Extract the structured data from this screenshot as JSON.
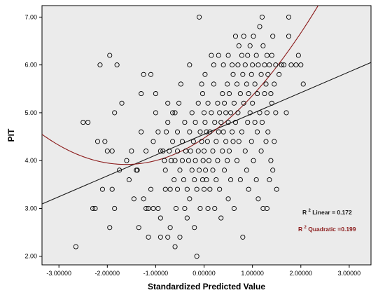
{
  "chart_data": {
    "type": "scatter",
    "xlabel": "Standardized Predicted Value",
    "ylabel": "PIT",
    "xlim": [
      -3.35,
      3.45
    ],
    "ylim": [
      1.82,
      7.24
    ],
    "x_ticks": [
      -3,
      -2,
      -1,
      0,
      1,
      2,
      3
    ],
    "x_tick_labels": [
      "-3.00000",
      "-2.00000",
      "-1.00000",
      "0.00000",
      "1.00000",
      "2.00000",
      "3.00000"
    ],
    "y_ticks": [
      2,
      3,
      4,
      5,
      6,
      7
    ],
    "y_tick_labels": [
      "2.00",
      "3.00",
      "4.00",
      "5.00",
      "6.00",
      "7.00"
    ],
    "grid": false,
    "plot_background": "#ebebeb",
    "marker_color": "#000000",
    "linear_fit": {
      "label_prefix": "R",
      "label_sup": "2",
      "label_suffix": " Linear = 0.172",
      "color": "#1a1a1a",
      "intercept": 4.55,
      "slope": 0.435
    },
    "quadratic_fit": {
      "label_prefix": "R",
      "label_sup": "2",
      "label_suffix": " Quadratic =0.199",
      "color": "#8b1a1a",
      "coefficients": [
        4.47,
        0.68,
        0.21
      ]
    },
    "points": [
      [
        -2.65,
        2.2
      ],
      [
        -2.5,
        4.8
      ],
      [
        -2.4,
        4.8
      ],
      [
        -2.3,
        3.0
      ],
      [
        -2.25,
        3.0
      ],
      [
        -2.2,
        4.4
      ],
      [
        -2.15,
        6.0
      ],
      [
        -2.1,
        3.4
      ],
      [
        -2.05,
        4.4
      ],
      [
        -2.0,
        4.2
      ],
      [
        -1.95,
        2.6
      ],
      [
        -1.95,
        6.2
      ],
      [
        -1.9,
        4.2
      ],
      [
        -1.9,
        3.4
      ],
      [
        -1.85,
        3.0
      ],
      [
        -1.85,
        5.0
      ],
      [
        -1.8,
        6.0
      ],
      [
        -1.75,
        3.8
      ],
      [
        -1.7,
        5.2
      ],
      [
        -1.6,
        4.0
      ],
      [
        -1.55,
        3.6
      ],
      [
        -1.5,
        4.2
      ],
      [
        -1.45,
        3.2
      ],
      [
        -1.4,
        3.8
      ],
      [
        -1.38,
        3.8
      ],
      [
        -1.35,
        2.6
      ],
      [
        -1.3,
        5.4
      ],
      [
        -1.3,
        4.6
      ],
      [
        -1.25,
        5.8
      ],
      [
        -1.25,
        3.2
      ],
      [
        -1.2,
        4.2
      ],
      [
        -1.2,
        3.0
      ],
      [
        -1.15,
        3.0
      ],
      [
        -1.15,
        2.4
      ],
      [
        -1.1,
        5.8
      ],
      [
        -1.1,
        3.4
      ],
      [
        -1.05,
        3.0
      ],
      [
        -1.05,
        4.4
      ],
      [
        -1.0,
        5.4
      ],
      [
        -1.0,
        5.0
      ],
      [
        -0.95,
        4.6
      ],
      [
        -0.95,
        3.0
      ],
      [
        -0.9,
        2.8
      ],
      [
        -0.9,
        4.2
      ],
      [
        -0.9,
        2.4
      ],
      [
        -0.85,
        4.2
      ],
      [
        -0.82,
        4.0
      ],
      [
        -0.8,
        3.8
      ],
      [
        -0.8,
        3.4
      ],
      [
        -0.78,
        4.6
      ],
      [
        -0.75,
        5.2
      ],
      [
        -0.75,
        4.8
      ],
      [
        -0.75,
        2.4
      ],
      [
        -0.72,
        4.2
      ],
      [
        -0.7,
        3.4
      ],
      [
        -0.7,
        2.6
      ],
      [
        -0.68,
        4.0
      ],
      [
        -0.65,
        5.0
      ],
      [
        -0.65,
        4.4
      ],
      [
        -0.62,
        3.6
      ],
      [
        -0.6,
        5.0
      ],
      [
        -0.6,
        4.0
      ],
      [
        -0.6,
        2.2
      ],
      [
        -0.58,
        3.0
      ],
      [
        -0.55,
        4.6
      ],
      [
        -0.55,
        4.2
      ],
      [
        -0.55,
        3.4
      ],
      [
        -0.52,
        5.2
      ],
      [
        -0.5,
        3.8
      ],
      [
        -0.5,
        2.4
      ],
      [
        -0.48,
        5.6
      ],
      [
        -0.45,
        4.4
      ],
      [
        -0.45,
        4.0
      ],
      [
        -0.42,
        3.6
      ],
      [
        -0.4,
        3.0
      ],
      [
        -0.4,
        4.8
      ],
      [
        -0.38,
        4.2
      ],
      [
        -0.35,
        3.4
      ],
      [
        -0.35,
        2.8
      ],
      [
        -0.32,
        4.0
      ],
      [
        -0.3,
        4.6
      ],
      [
        -0.3,
        3.2
      ],
      [
        -0.3,
        6.0
      ],
      [
        -0.28,
        4.2
      ],
      [
        -0.25,
        3.8
      ],
      [
        -0.25,
        5.0
      ],
      [
        -0.22,
        4.4
      ],
      [
        -0.2,
        3.6
      ],
      [
        -0.2,
        2.6
      ],
      [
        -0.18,
        4.8
      ],
      [
        -0.18,
        4.0
      ],
      [
        -0.15,
        3.4
      ],
      [
        -0.15,
        2.0
      ],
      [
        -0.12,
        5.2
      ],
      [
        -0.12,
        4.2
      ],
      [
        -0.1,
        3.8
      ],
      [
        -0.1,
        7.0
      ],
      [
        -0.08,
        4.6
      ],
      [
        -0.08,
        3.0
      ],
      [
        -0.05,
        5.6
      ],
      [
        -0.05,
        4.4
      ],
      [
        -0.03,
        5.4
      ],
      [
        -0.03,
        3.6
      ],
      [
        -0.02,
        4.0
      ],
      [
        0.0,
        5.0
      ],
      [
        0.0,
        4.2
      ],
      [
        0.0,
        3.4
      ],
      [
        0.02,
        5.8
      ],
      [
        0.02,
        4.8
      ],
      [
        0.03,
        3.8
      ],
      [
        0.05,
        4.6
      ],
      [
        0.05,
        3.6
      ],
      [
        0.07,
        4.4
      ],
      [
        0.08,
        5.2
      ],
      [
        0.08,
        3.0
      ],
      [
        0.1,
        4.0
      ],
      [
        0.12,
        4.6
      ],
      [
        0.12,
        3.4
      ],
      [
        0.15,
        6.2
      ],
      [
        0.15,
        5.0
      ],
      [
        0.18,
        4.2
      ],
      [
        0.18,
        3.8
      ],
      [
        0.2,
        6.0
      ],
      [
        0.2,
        5.6
      ],
      [
        0.22,
        4.8
      ],
      [
        0.22,
        3.0
      ],
      [
        0.25,
        4.4
      ],
      [
        0.25,
        3.6
      ],
      [
        0.28,
        5.2
      ],
      [
        0.28,
        4.0
      ],
      [
        0.3,
        6.2
      ],
      [
        0.3,
        4.6
      ],
      [
        0.32,
        5.0
      ],
      [
        0.32,
        3.4
      ],
      [
        0.35,
        4.8
      ],
      [
        0.35,
        2.8
      ],
      [
        0.38,
        5.4
      ],
      [
        0.38,
        4.2
      ],
      [
        0.4,
        6.0
      ],
      [
        0.4,
        4.6
      ],
      [
        0.42,
        5.2
      ],
      [
        0.42,
        3.8
      ],
      [
        0.45,
        5.0
      ],
      [
        0.45,
        4.4
      ],
      [
        0.48,
        5.6
      ],
      [
        0.48,
        4.0
      ],
      [
        0.5,
        6.2
      ],
      [
        0.5,
        4.8
      ],
      [
        0.5,
        3.2
      ],
      [
        0.52,
        5.4
      ],
      [
        0.52,
        4.2
      ],
      [
        0.55,
        5.0
      ],
      [
        0.55,
        3.6
      ],
      [
        0.58,
        6.0
      ],
      [
        0.58,
        4.6
      ],
      [
        0.6,
        5.8
      ],
      [
        0.6,
        4.4
      ],
      [
        0.62,
        5.2
      ],
      [
        0.62,
        3.0
      ],
      [
        0.65,
        6.6
      ],
      [
        0.65,
        4.8
      ],
      [
        0.68,
        5.6
      ],
      [
        0.68,
        4.0
      ],
      [
        0.7,
        6.0
      ],
      [
        0.7,
        5.0
      ],
      [
        0.72,
        6.4
      ],
      [
        0.72,
        4.4
      ],
      [
        0.75,
        5.4
      ],
      [
        0.75,
        3.6
      ],
      [
        0.78,
        6.2
      ],
      [
        0.78,
        4.6
      ],
      [
        0.8,
        5.8
      ],
      [
        0.8,
        2.4
      ],
      [
        0.82,
        6.6
      ],
      [
        0.82,
        5.2
      ],
      [
        0.85,
        6.0
      ],
      [
        0.85,
        4.2
      ],
      [
        0.88,
        5.6
      ],
      [
        0.88,
        3.8
      ],
      [
        0.9,
        6.2
      ],
      [
        0.9,
        4.8
      ],
      [
        0.92,
        5.4
      ],
      [
        0.92,
        3.4
      ],
      [
        0.95,
        6.4
      ],
      [
        0.95,
        5.0
      ],
      [
        0.98,
        5.8
      ],
      [
        0.98,
        4.4
      ],
      [
        1.0,
        6.0
      ],
      [
        1.0,
        5.2
      ],
      [
        1.02,
        6.6
      ],
      [
        1.02,
        4.0
      ],
      [
        1.05,
        5.6
      ],
      [
        1.05,
        4.8
      ],
      [
        1.08,
        6.2
      ],
      [
        1.08,
        3.6
      ],
      [
        1.1,
        5.4
      ],
      [
        1.1,
        4.6
      ],
      [
        1.12,
        6.0
      ],
      [
        1.12,
        3.2
      ],
      [
        1.15,
        6.8
      ],
      [
        1.15,
        5.0
      ],
      [
        1.18,
        5.8
      ],
      [
        1.18,
        4.2
      ],
      [
        1.2,
        7.0
      ],
      [
        1.2,
        4.8
      ],
      [
        1.22,
        6.4
      ],
      [
        1.22,
        3.0
      ],
      [
        1.25,
        6.0
      ],
      [
        1.25,
        5.4
      ],
      [
        1.28,
        5.6
      ],
      [
        1.28,
        4.4
      ],
      [
        1.3,
        6.2
      ],
      [
        1.3,
        5.0
      ],
      [
        1.3,
        3.0
      ],
      [
        1.32,
        5.8
      ],
      [
        1.32,
        4.6
      ],
      [
        1.35,
        6.0
      ],
      [
        1.35,
        3.6
      ],
      [
        1.38,
        5.4
      ],
      [
        1.38,
        4.0
      ],
      [
        1.4,
        6.2
      ],
      [
        1.4,
        5.2
      ],
      [
        1.42,
        6.6
      ],
      [
        1.42,
        3.8
      ],
      [
        1.45,
        5.6
      ],
      [
        1.45,
        4.4
      ],
      [
        1.48,
        6.0
      ],
      [
        1.48,
        5.0
      ],
      [
        1.5,
        3.4
      ],
      [
        1.55,
        5.8
      ],
      [
        1.6,
        6.0
      ],
      [
        1.65,
        6.0
      ],
      [
        1.7,
        5.0
      ],
      [
        1.75,
        6.6
      ],
      [
        1.75,
        7.0
      ],
      [
        1.8,
        6.0
      ],
      [
        1.9,
        6.0
      ],
      [
        1.95,
        6.2
      ],
      [
        2.0,
        6.0
      ],
      [
        2.05,
        5.6
      ]
    ]
  }
}
